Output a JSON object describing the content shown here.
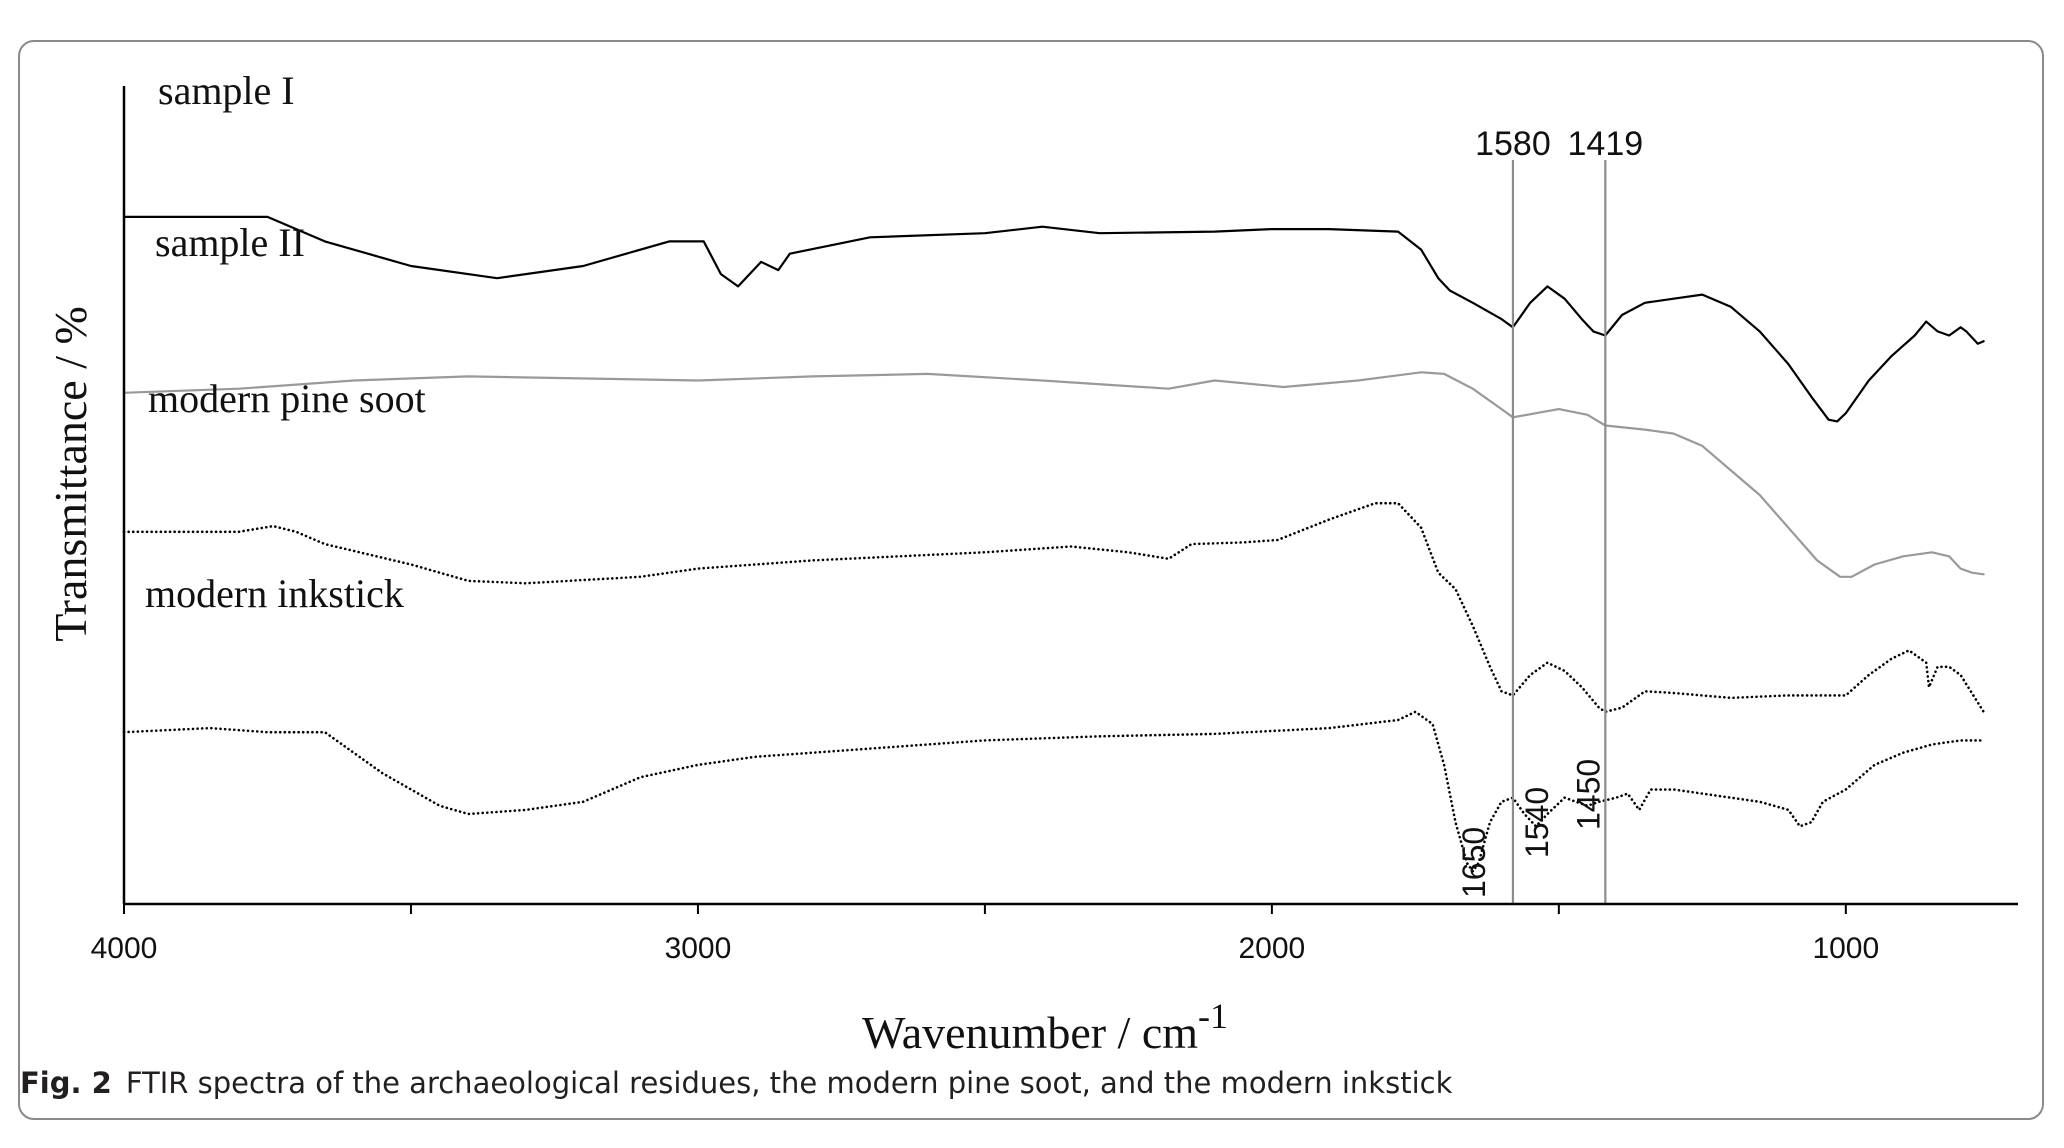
{
  "caption": {
    "label": "Fig. 2",
    "text": "FTIR spectra of the archaeological residues, the modern pine soot, and the modern inkstick"
  },
  "chart_data": {
    "type": "line",
    "title": "",
    "xlabel": "Wavenumber / cm",
    "xlabel_superscript": "-1",
    "ylabel": "Transmittance / %",
    "xlim": [
      4000,
      700
    ],
    "x_reversed": true,
    "xticks": [
      4000,
      3000,
      2000,
      1000
    ],
    "xtick_labels": [
      "4000",
      "3000",
      "2000",
      "1000"
    ],
    "yticks_shown": false,
    "grid": false,
    "legend": "none",
    "reference_lines": [
      {
        "x": 1580,
        "label": "1580",
        "color": "#8c8c8c"
      },
      {
        "x": 1419,
        "label": "1419",
        "color": "#8c8c8c"
      }
    ],
    "peak_annotations": [
      {
        "x": 1650,
        "label": "1650"
      },
      {
        "x": 1540,
        "label": "1540"
      },
      {
        "x": 1450,
        "label": "1450"
      }
    ],
    "series": [
      {
        "name": "sample I",
        "color": "#000000",
        "style": "solid",
        "points": [
          [
            4000,
            0.16
          ],
          [
            3750,
            0.16
          ],
          [
            3650,
            0.19
          ],
          [
            3500,
            0.22
          ],
          [
            3350,
            0.235
          ],
          [
            3200,
            0.22
          ],
          [
            3050,
            0.19
          ],
          [
            2990,
            0.19
          ],
          [
            2960,
            0.23
          ],
          [
            2930,
            0.245
          ],
          [
            2890,
            0.215
          ],
          [
            2860,
            0.225
          ],
          [
            2840,
            0.205
          ],
          [
            2700,
            0.185
          ],
          [
            2500,
            0.18
          ],
          [
            2400,
            0.172
          ],
          [
            2300,
            0.18
          ],
          [
            2100,
            0.178
          ],
          [
            2000,
            0.175
          ],
          [
            1900,
            0.175
          ],
          [
            1780,
            0.178
          ],
          [
            1740,
            0.2
          ],
          [
            1710,
            0.235
          ],
          [
            1690,
            0.25
          ],
          [
            1650,
            0.265
          ],
          [
            1600,
            0.285
          ],
          [
            1580,
            0.295
          ],
          [
            1550,
            0.265
          ],
          [
            1520,
            0.245
          ],
          [
            1490,
            0.26
          ],
          [
            1460,
            0.285
          ],
          [
            1440,
            0.3
          ],
          [
            1419,
            0.305
          ],
          [
            1390,
            0.28
          ],
          [
            1350,
            0.265
          ],
          [
            1300,
            0.26
          ],
          [
            1250,
            0.255
          ],
          [
            1200,
            0.27
          ],
          [
            1150,
            0.3
          ],
          [
            1100,
            0.34
          ],
          [
            1060,
            0.38
          ],
          [
            1030,
            0.408
          ],
          [
            1015,
            0.41
          ],
          [
            1000,
            0.4
          ],
          [
            960,
            0.36
          ],
          [
            920,
            0.33
          ],
          [
            880,
            0.305
          ],
          [
            860,
            0.288
          ],
          [
            840,
            0.3
          ],
          [
            820,
            0.305
          ],
          [
            800,
            0.295
          ],
          [
            790,
            0.3
          ],
          [
            770,
            0.315
          ],
          [
            760,
            0.312
          ]
        ]
      },
      {
        "name": "sample II",
        "color": "#999999",
        "style": "solid",
        "points": [
          [
            4000,
            0.375
          ],
          [
            3800,
            0.37
          ],
          [
            3600,
            0.36
          ],
          [
            3400,
            0.355
          ],
          [
            3000,
            0.36
          ],
          [
            2800,
            0.355
          ],
          [
            2600,
            0.352
          ],
          [
            2400,
            0.36
          ],
          [
            2180,
            0.37
          ],
          [
            2100,
            0.36
          ],
          [
            1980,
            0.368
          ],
          [
            1850,
            0.36
          ],
          [
            1740,
            0.35
          ],
          [
            1700,
            0.352
          ],
          [
            1650,
            0.37
          ],
          [
            1600,
            0.395
          ],
          [
            1580,
            0.405
          ],
          [
            1540,
            0.4
          ],
          [
            1500,
            0.395
          ],
          [
            1450,
            0.402
          ],
          [
            1419,
            0.415
          ],
          [
            1350,
            0.42
          ],
          [
            1300,
            0.425
          ],
          [
            1250,
            0.44
          ],
          [
            1200,
            0.47
          ],
          [
            1150,
            0.5
          ],
          [
            1100,
            0.54
          ],
          [
            1050,
            0.58
          ],
          [
            1010,
            0.6
          ],
          [
            990,
            0.6
          ],
          [
            950,
            0.585
          ],
          [
            900,
            0.575
          ],
          [
            850,
            0.57
          ],
          [
            820,
            0.575
          ],
          [
            800,
            0.59
          ],
          [
            780,
            0.595
          ],
          [
            760,
            0.597
          ]
        ]
      },
      {
        "name": "modern pine soot",
        "color": "#000000",
        "style": "dotted",
        "points": [
          [
            4000,
            0.545
          ],
          [
            3800,
            0.545
          ],
          [
            3740,
            0.538
          ],
          [
            3700,
            0.545
          ],
          [
            3650,
            0.56
          ],
          [
            3500,
            0.585
          ],
          [
            3400,
            0.605
          ],
          [
            3300,
            0.608
          ],
          [
            3100,
            0.6
          ],
          [
            3000,
            0.59
          ],
          [
            2800,
            0.58
          ],
          [
            2500,
            0.57
          ],
          [
            2350,
            0.563
          ],
          [
            2250,
            0.57
          ],
          [
            2180,
            0.578
          ],
          [
            2140,
            0.56
          ],
          [
            2050,
            0.558
          ],
          [
            1990,
            0.555
          ],
          [
            1900,
            0.53
          ],
          [
            1820,
            0.51
          ],
          [
            1780,
            0.51
          ],
          [
            1740,
            0.54
          ],
          [
            1710,
            0.595
          ],
          [
            1680,
            0.615
          ],
          [
            1650,
            0.66
          ],
          [
            1620,
            0.71
          ],
          [
            1600,
            0.74
          ],
          [
            1580,
            0.745
          ],
          [
            1550,
            0.72
          ],
          [
            1520,
            0.705
          ],
          [
            1490,
            0.715
          ],
          [
            1460,
            0.735
          ],
          [
            1430,
            0.76
          ],
          [
            1419,
            0.765
          ],
          [
            1390,
            0.76
          ],
          [
            1350,
            0.74
          ],
          [
            1300,
            0.742
          ],
          [
            1200,
            0.748
          ],
          [
            1100,
            0.745
          ],
          [
            1000,
            0.745
          ],
          [
            960,
            0.72
          ],
          [
            920,
            0.7
          ],
          [
            890,
            0.69
          ],
          [
            860,
            0.705
          ],
          [
            855,
            0.735
          ],
          [
            840,
            0.71
          ],
          [
            820,
            0.71
          ],
          [
            800,
            0.72
          ],
          [
            760,
            0.765
          ]
        ]
      },
      {
        "name": "modern inkstick",
        "color": "#000000",
        "style": "dotted",
        "points": [
          [
            4000,
            0.79
          ],
          [
            3850,
            0.785
          ],
          [
            3750,
            0.79
          ],
          [
            3650,
            0.79
          ],
          [
            3550,
            0.84
          ],
          [
            3450,
            0.88
          ],
          [
            3400,
            0.89
          ],
          [
            3300,
            0.885
          ],
          [
            3200,
            0.875
          ],
          [
            3100,
            0.845
          ],
          [
            3000,
            0.83
          ],
          [
            2900,
            0.82
          ],
          [
            2700,
            0.81
          ],
          [
            2500,
            0.8
          ],
          [
            2300,
            0.795
          ],
          [
            2100,
            0.792
          ],
          [
            1900,
            0.785
          ],
          [
            1780,
            0.775
          ],
          [
            1750,
            0.765
          ],
          [
            1720,
            0.78
          ],
          [
            1700,
            0.83
          ],
          [
            1680,
            0.9
          ],
          [
            1660,
            0.95
          ],
          [
            1650,
            0.96
          ],
          [
            1640,
            0.95
          ],
          [
            1620,
            0.9
          ],
          [
            1600,
            0.875
          ],
          [
            1580,
            0.87
          ],
          [
            1560,
            0.89
          ],
          [
            1540,
            0.905
          ],
          [
            1520,
            0.89
          ],
          [
            1490,
            0.87
          ],
          [
            1470,
            0.875
          ],
          [
            1450,
            0.88
          ],
          [
            1430,
            0.875
          ],
          [
            1400,
            0.87
          ],
          [
            1380,
            0.865
          ],
          [
            1360,
            0.885
          ],
          [
            1340,
            0.86
          ],
          [
            1300,
            0.86
          ],
          [
            1200,
            0.87
          ],
          [
            1150,
            0.875
          ],
          [
            1100,
            0.885
          ],
          [
            1080,
            0.905
          ],
          [
            1060,
            0.9
          ],
          [
            1040,
            0.875
          ],
          [
            1000,
            0.86
          ],
          [
            950,
            0.83
          ],
          [
            900,
            0.815
          ],
          [
            850,
            0.805
          ],
          [
            800,
            0.8
          ],
          [
            760,
            0.8
          ]
        ]
      }
    ]
  }
}
